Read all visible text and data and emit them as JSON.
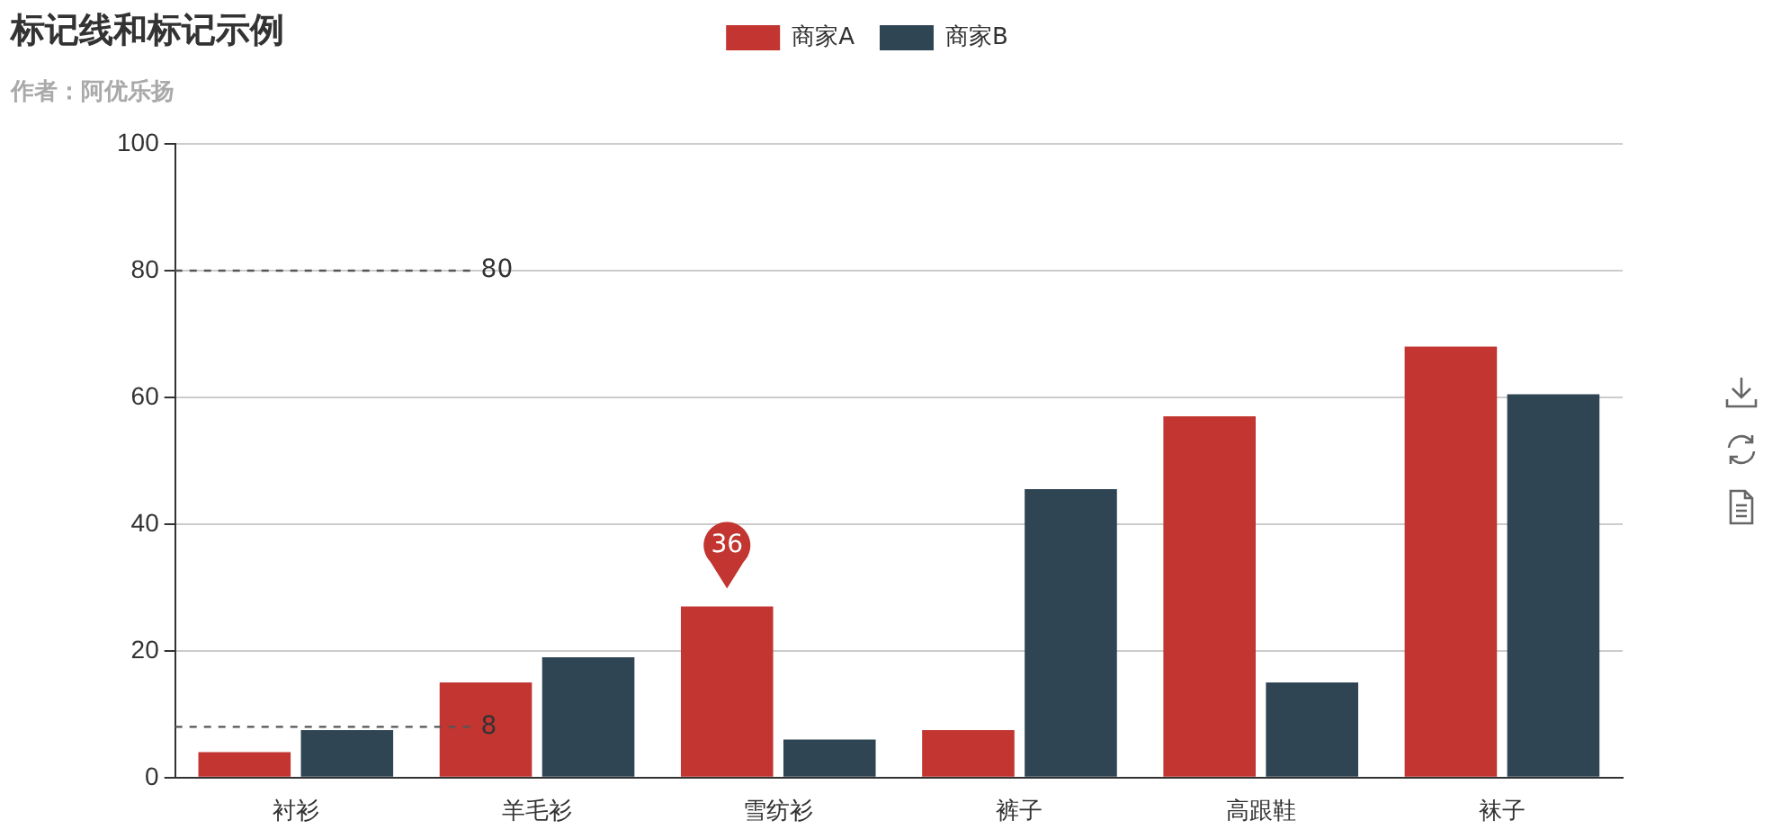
{
  "chart_data": {
    "type": "bar",
    "title": "标记线和标记示例",
    "subtitle": "作者：阿优乐扬",
    "categories": [
      "衬衫",
      "羊毛衫",
      "雪纺衫",
      "裤子",
      "高跟鞋",
      "袜子"
    ],
    "series": [
      {
        "name": "商家A",
        "color": "#c23531",
        "values": [
          4,
          15,
          27,
          7.5,
          57,
          68
        ]
      },
      {
        "name": "商家B",
        "color": "#2f4554",
        "values": [
          7.5,
          19,
          6,
          45.5,
          15,
          60.5
        ]
      }
    ],
    "ylim": [
      0,
      100
    ],
    "yticks": [
      0,
      20,
      40,
      60,
      80,
      100
    ],
    "grid": "y",
    "legend": "top",
    "ref_lines": [
      {
        "axis": "y",
        "value": 80,
        "label": "80",
        "color": "#555555",
        "line_style": "dashed"
      },
      {
        "axis": "y",
        "value": 8,
        "label": "8",
        "color": "#555555",
        "line_style": "dashed"
      }
    ],
    "annotations": [
      "36"
    ]
  }
}
